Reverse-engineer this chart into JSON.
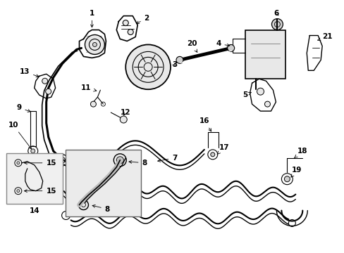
{
  "background_color": "#ffffff",
  "line_color": "#000000",
  "gray_fill": "#d0d0d0",
  "light_gray": "#e8e8e8",
  "inset_fill": "#e0e0e0",
  "figsize": [
    4.89,
    3.6
  ],
  "dpi": 100
}
